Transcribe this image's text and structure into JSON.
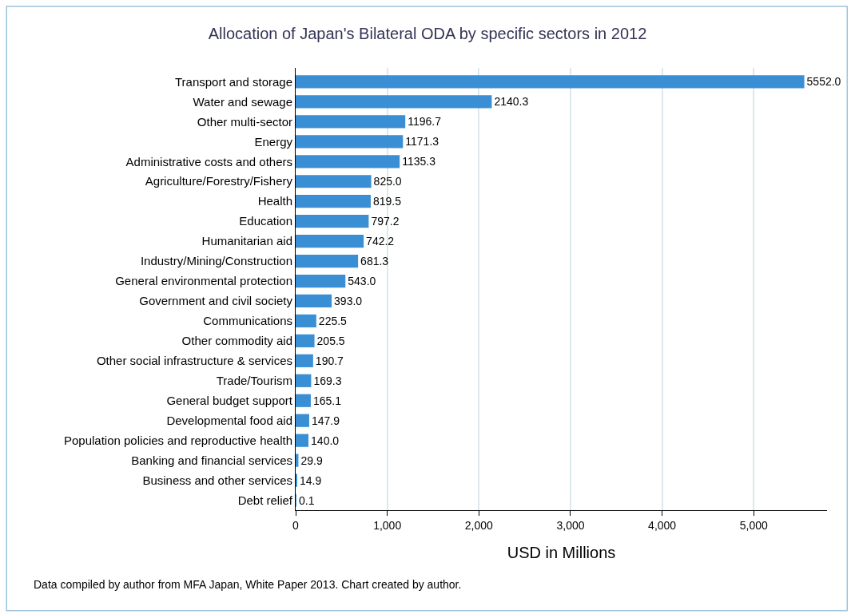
{
  "chart_data": {
    "type": "bar",
    "orientation": "horizontal",
    "title": "Allocation of Japan's Bilateral ODA by specific sectors in 2012",
    "xlabel": "USD in Millions",
    "categories": [
      "Transport and storage",
      "Water and sewage",
      "Other multi-sector",
      "Energy",
      "Administrative costs and others",
      "Agriculture/Forestry/Fishery",
      "Health",
      "Education",
      "Humanitarian aid",
      "Industry/Mining/Construction",
      "General environmental protection",
      "Government and civil society",
      "Communications",
      "Other commodity aid",
      "Other social infrastructure & services",
      "Trade/Tourism",
      "General budget support",
      "Developmental food aid",
      "Population policies and reproductive health",
      "Banking and financial services",
      "Business and other services",
      "Debt relief"
    ],
    "values": [
      5552.0,
      2140.3,
      1196.7,
      1171.3,
      1135.3,
      825.0,
      819.5,
      797.2,
      742.2,
      681.3,
      543.0,
      393.0,
      225.5,
      205.5,
      190.7,
      169.3,
      165.1,
      147.9,
      140.0,
      29.9,
      14.9,
      0.1
    ],
    "value_labels": [
      "5552.0",
      "2140.3",
      "1196.7",
      "1171.3",
      "1135.3",
      "825.0",
      "819.5",
      "797.2",
      "742.2",
      "681.3",
      "543.0",
      "393.0",
      "225.5",
      "205.5",
      "190.7",
      "169.3",
      "165.1",
      "147.9",
      "140.0",
      "29.9",
      "14.9",
      "0.1"
    ],
    "color": "#3a8fd4",
    "xlim": [
      0,
      5800
    ],
    "xticks": [
      {
        "value": 0,
        "label": "0"
      },
      {
        "value": 1000,
        "label": "1,000"
      },
      {
        "value": 2000,
        "label": "2,000"
      },
      {
        "value": 3000,
        "label": "3,000"
      },
      {
        "value": 4000,
        "label": "4,000"
      },
      {
        "value": 5000,
        "label": "5,000"
      }
    ],
    "grid": "x",
    "annotations": [
      "Data compiled by author from MFA Japan, White Paper 2013. Chart created by author."
    ]
  }
}
